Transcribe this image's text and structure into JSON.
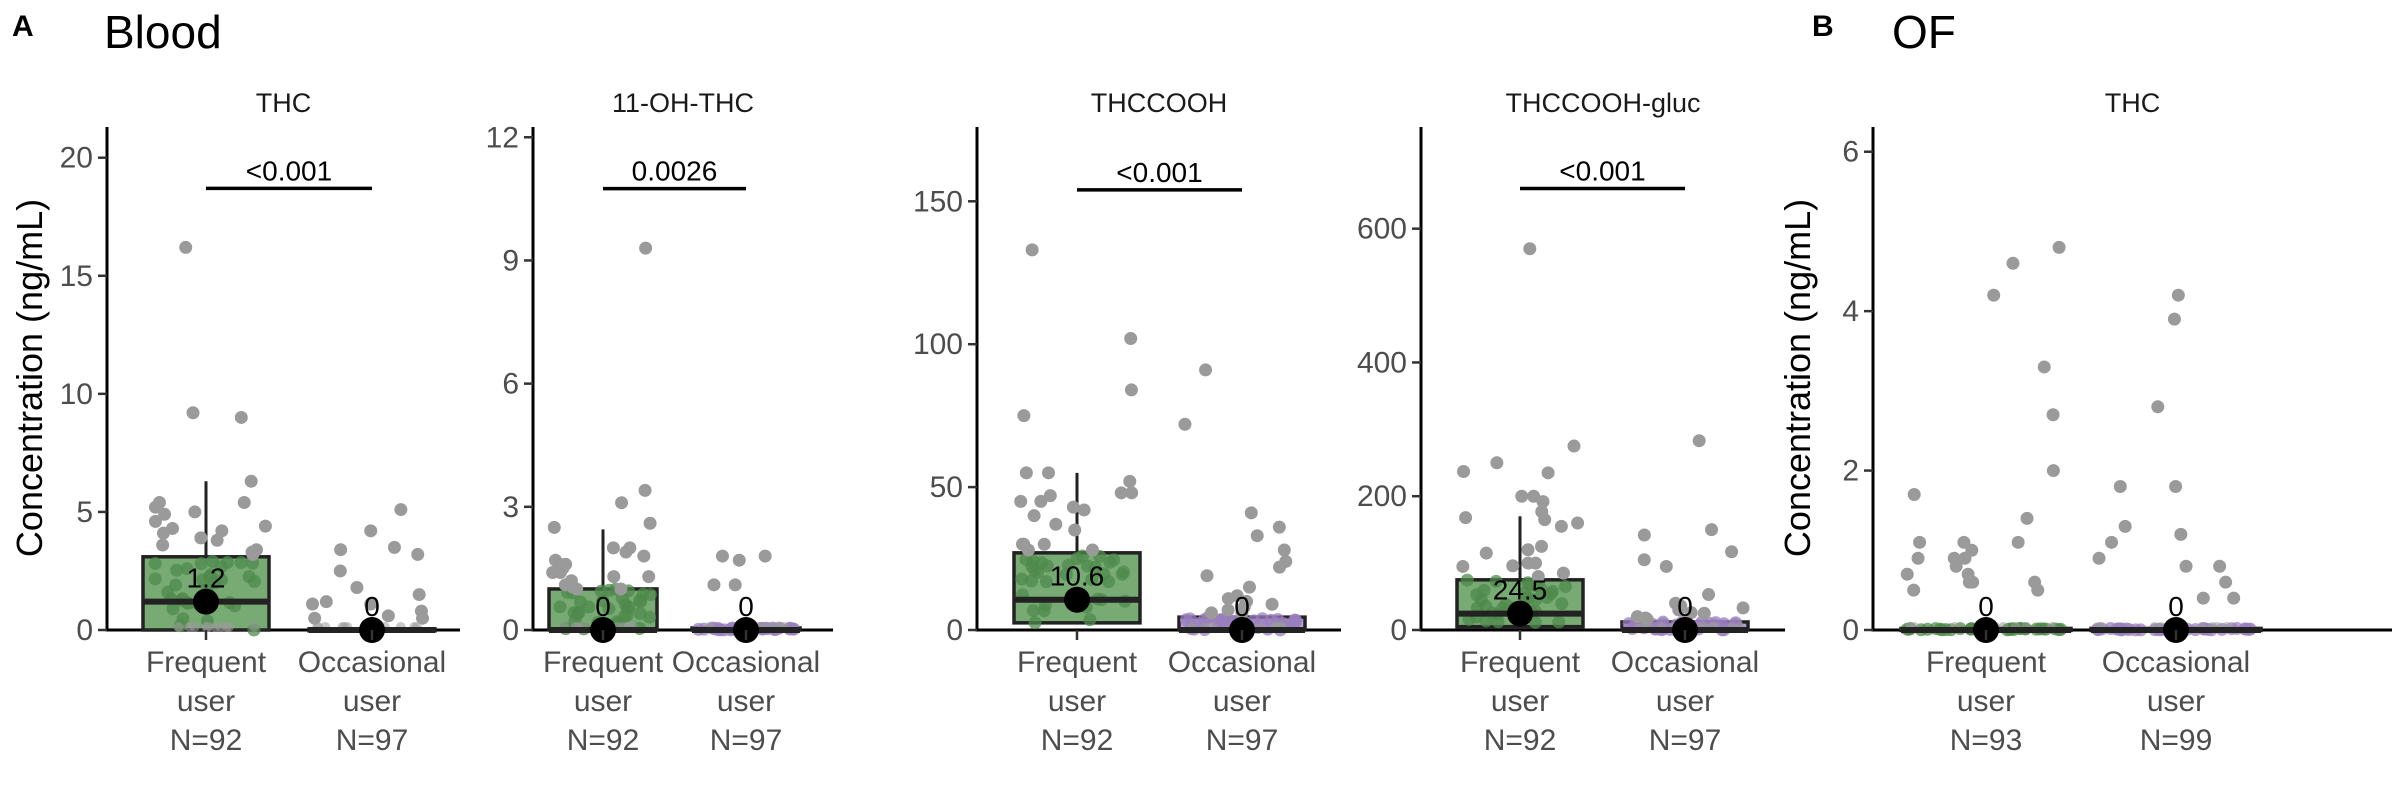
{
  "figure": {
    "sections": [
      {
        "letter": "A",
        "title": "Blood"
      },
      {
        "letter": "B",
        "title": "OF"
      }
    ],
    "ylabel": "Concentration (ng/mL)",
    "colors": {
      "frequent_fill": "#78ab73",
      "frequent_point": "#4f8a4c",
      "occasional_fill": "#b9a0d6",
      "occasional_point": "#9a7fbd",
      "outside_point": "#9a9a9a",
      "median_dot": "#000000"
    }
  },
  "chart_data": [
    {
      "type": "box",
      "section": "A",
      "title": "THC",
      "ylim": [
        0,
        21.3
      ],
      "yticks": [
        0,
        5,
        10,
        15,
        20
      ],
      "p_value": "<0.001",
      "p_bracket_y": 18.7,
      "categories": [
        {
          "label": [
            "Frequent",
            "user",
            "N=92"
          ],
          "group": "frequent",
          "q1": 0,
          "median": 1.2,
          "q3": 3.1,
          "whisker_low": 0,
          "whisker_high": 6.3,
          "median_label": "1.2",
          "points": [
            16.2,
            9.2,
            9.0,
            6.3,
            5.4,
            5.4,
            5.2,
            5.0,
            4.9,
            4.6,
            4.4,
            4.3,
            4.2,
            4.1,
            3.9,
            3.8,
            3.6,
            3.4,
            3.3,
            3.2
          ]
        },
        {
          "label": [
            "Occasional",
            "user",
            "N=97"
          ],
          "group": "occasional",
          "q1": 0,
          "median": 0,
          "q3": 0.05,
          "whisker_low": 0,
          "whisker_high": 0.05,
          "median_label": "0",
          "points": [
            5.1,
            4.2,
            3.5,
            3.4,
            3.2,
            2.5,
            1.8,
            1.5,
            1.2,
            1.1,
            1.1,
            0.8,
            0.6,
            0.5,
            0.5
          ]
        }
      ]
    },
    {
      "type": "box",
      "section": "A",
      "title": "11-OH-THC",
      "ylim": [
        0,
        12.25
      ],
      "yticks": [
        0,
        3,
        6,
        9,
        12
      ],
      "p_value": "0.0026",
      "p_bracket_y": 10.75,
      "categories": [
        {
          "label": [
            "Frequent",
            "user",
            "N=92"
          ],
          "group": "frequent",
          "q1": 0,
          "median": 0,
          "q3": 1.0,
          "whisker_low": 0,
          "whisker_high": 2.45,
          "median_label": "0",
          "points": [
            9.3,
            3.4,
            3.1,
            2.6,
            2.5,
            2.0,
            2.0,
            1.9,
            1.8,
            1.7,
            1.6,
            1.6,
            1.5,
            1.4,
            1.4,
            1.3,
            1.3,
            1.2,
            1.1,
            1.05,
            1.0,
            1.0
          ]
        },
        {
          "label": [
            "Occasional",
            "user",
            "N=97"
          ],
          "group": "occasional",
          "q1": 0,
          "median": 0,
          "q3": 0.05,
          "whisker_low": 0,
          "whisker_high": 0.05,
          "median_label": "0",
          "points": [
            1.8,
            1.8,
            1.7,
            1.1,
            1.1
          ]
        }
      ]
    },
    {
      "type": "box",
      "section": "A",
      "title": "THCCOOH",
      "ylim": [
        0,
        176
      ],
      "yticks": [
        0,
        50,
        100,
        150
      ],
      "p_value": "<0.001",
      "p_bracket_y": 154,
      "categories": [
        {
          "label": [
            "Frequent",
            "user",
            "N=92"
          ],
          "group": "frequent",
          "q1": 2.5,
          "median": 10.6,
          "q3": 27,
          "whisker_low": 0,
          "whisker_high": 55,
          "median_label": "10.6",
          "points": [
            133,
            102,
            84,
            75,
            55,
            55,
            52,
            48,
            48,
            47,
            45,
            45,
            43,
            42,
            40,
            37,
            35,
            30,
            30,
            30,
            28,
            28
          ]
        },
        {
          "label": [
            "Occasional",
            "user",
            "N=97"
          ],
          "group": "occasional",
          "q1": 0,
          "median": 0,
          "q3": 4.5,
          "whisker_low": 0,
          "whisker_high": 4.5,
          "median_label": "0",
          "points": [
            91,
            72,
            41,
            36,
            33,
            28,
            24,
            22,
            19,
            15,
            12,
            11,
            10,
            9,
            8,
            7,
            6,
            6
          ]
        }
      ]
    },
    {
      "type": "box",
      "section": "A",
      "title": "THCCOOH-gluc",
      "ylim": [
        0,
        752
      ],
      "yticks": [
        0,
        200,
        400,
        600
      ],
      "p_value": "<0.001",
      "p_bracket_y": 660,
      "categories": [
        {
          "label": [
            "Frequent",
            "user",
            "N=92"
          ],
          "group": "frequent",
          "q1": 5,
          "median": 24.5,
          "q3": 75,
          "whisker_low": 0,
          "whisker_high": 170,
          "median_label": "24.5",
          "points": [
            570,
            275,
            250,
            237,
            235,
            200,
            200,
            192,
            177,
            168,
            165,
            160,
            155,
            125,
            120,
            115,
            100,
            100,
            96,
            95,
            85,
            80
          ]
        },
        {
          "label": [
            "Occasional",
            "user",
            "N=97"
          ],
          "group": "occasional",
          "q1": 0,
          "median": 0,
          "q3": 12,
          "whisker_low": 0,
          "whisker_high": 12,
          "median_label": "0",
          "points": [
            283,
            150,
            142,
            117,
            105,
            95,
            53,
            40,
            36,
            33,
            30,
            26,
            25,
            20,
            18,
            16
          ]
        }
      ]
    },
    {
      "type": "box",
      "section": "B",
      "title": "THC",
      "ylim": [
        0,
        6.31
      ],
      "yticks": [
        0,
        2,
        4,
        6
      ],
      "p_value": "",
      "categories": [
        {
          "label": [
            "Frequent",
            "user",
            "N=93"
          ],
          "group": "frequent",
          "q1": 0,
          "median": 0,
          "q3": 0.02,
          "whisker_low": 0,
          "whisker_high": 0.02,
          "median_label": "0",
          "points": [
            4.8,
            4.6,
            4.2,
            3.3,
            2.7,
            2.0,
            1.7,
            1.4,
            1.1,
            1.1,
            1.1,
            1.0,
            0.9,
            0.9,
            0.9,
            0.8,
            0.7,
            0.7,
            0.6,
            0.6,
            0.6,
            0.5,
            0.5
          ]
        },
        {
          "label": [
            "Occasional",
            "user",
            "N=99"
          ],
          "group": "occasional",
          "q1": 0,
          "median": 0,
          "q3": 0.02,
          "whisker_low": 0,
          "whisker_high": 0.02,
          "median_label": "0",
          "points": [
            4.2,
            3.9,
            2.8,
            1.8,
            1.8,
            1.3,
            1.2,
            1.1,
            0.9,
            0.8,
            0.8,
            0.6,
            0.4,
            0.4
          ]
        }
      ]
    }
  ]
}
